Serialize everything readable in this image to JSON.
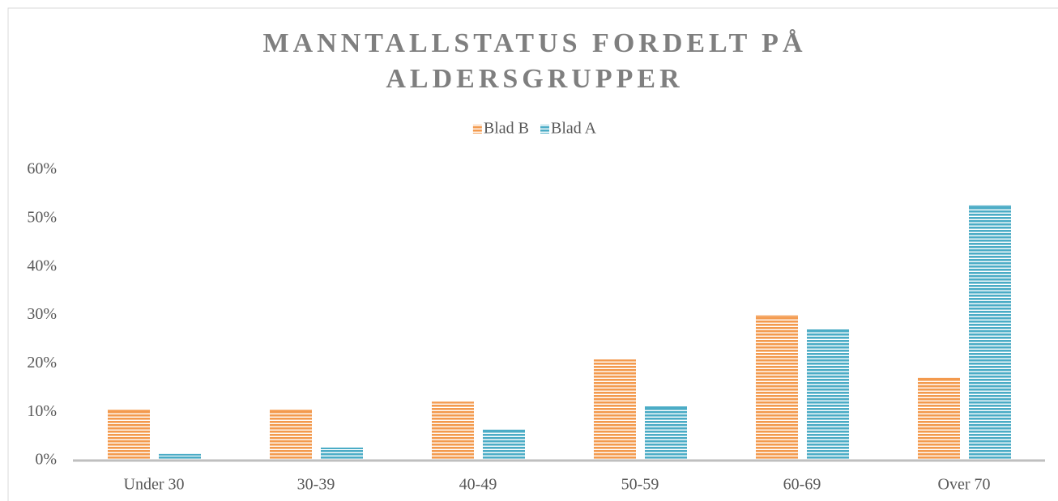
{
  "chart_data": {
    "type": "bar",
    "title": "MANNTALLSTATUS FORDELT PÅ ALDERSGRUPPER",
    "categories": [
      "Under 30",
      "30-39",
      "40-49",
      "50-59",
      "60-69",
      "Over 70"
    ],
    "series": [
      {
        "name": "Blad B",
        "color": "#f39a4e",
        "values": [
          10.3,
          10.3,
          12,
          20.7,
          29.8,
          16.9
        ]
      },
      {
        "name": "Blad A",
        "color": "#4bacc6",
        "values": [
          1.2,
          2.5,
          6.2,
          11,
          26.9,
          52.5
        ]
      }
    ],
    "ylim": [
      0,
      60
    ],
    "yticks": [
      {
        "value": 0,
        "label": "0%"
      },
      {
        "value": 10,
        "label": "10%"
      },
      {
        "value": 20,
        "label": "20%"
      },
      {
        "value": 30,
        "label": "30%"
      },
      {
        "value": 40,
        "label": "40%"
      },
      {
        "value": 50,
        "label": "50%"
      },
      {
        "value": 60,
        "label": "60%"
      }
    ],
    "legend": "top"
  }
}
